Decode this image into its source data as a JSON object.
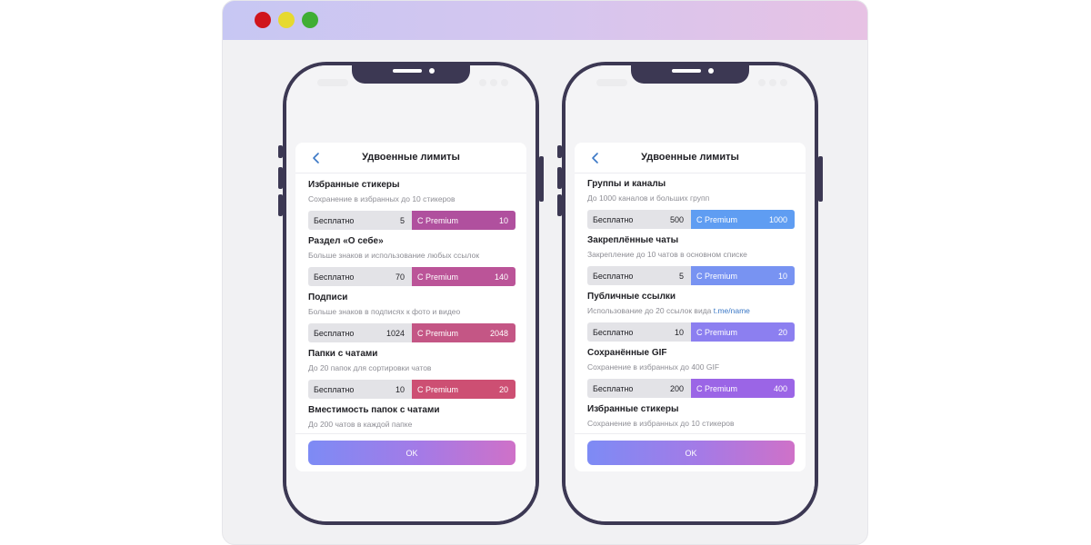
{
  "left_screen": {
    "header": {
      "title": "Удвоенные лимиты"
    },
    "items": [
      {
        "title": "Избранные стикеры",
        "subtitle": "Сохранение в избранных до 10 стикеров",
        "free_label": "Бесплатно",
        "free_value": "5",
        "premium_label": "С Premium",
        "premium_value": "10",
        "premium_color": "#b0509e"
      },
      {
        "title": "Раздел «О себе»",
        "subtitle": "Больше знаков и использование любых ссылок",
        "free_label": "Бесплатно",
        "free_value": "70",
        "premium_label": "С Premium",
        "premium_value": "140",
        "premium_color": "#bb5498"
      },
      {
        "title": "Подписи",
        "subtitle": "Больше знаков в подписях к фото и видео",
        "free_label": "Бесплатно",
        "free_value": "1024",
        "premium_label": "С Premium",
        "premium_value": "2048",
        "premium_color": "#c45685"
      },
      {
        "title": "Папки с чатами",
        "subtitle": "До 20 папок для сортировки чатов",
        "free_label": "Бесплатно",
        "free_value": "10",
        "premium_label": "С Premium",
        "premium_value": "20",
        "premium_color": "#cd4f73"
      },
      {
        "title": "Вместимость папок с чатами",
        "subtitle": "До 200 чатов в каждой папке"
      }
    ],
    "footer": {
      "ok_label": "OK"
    }
  },
  "right_screen": {
    "header": {
      "title": "Удвоенные лимиты"
    },
    "items": [
      {
        "title": "Группы и каналы",
        "subtitle": "До 1000 каналов и больших групп",
        "free_label": "Бесплатно",
        "free_value": "500",
        "premium_label": "С Premium",
        "premium_value": "1000",
        "premium_color": "#5f9df2"
      },
      {
        "title": "Закреплённые чаты",
        "subtitle": "Закрепление до 10 чатов в основном списке",
        "free_label": "Бесплатно",
        "free_value": "5",
        "premium_label": "С Premium",
        "premium_value": "10",
        "premium_color": "#7893f2"
      },
      {
        "title": "Публичные ссылки",
        "subtitle": "Использование до 20 ссылок вида ",
        "subtitle_link": "t.me/name",
        "free_label": "Бесплатно",
        "free_value": "10",
        "premium_label": "С Premium",
        "premium_value": "20",
        "premium_color": "#8c7ff0"
      },
      {
        "title": "Сохранённые GIF",
        "subtitle": "Сохранение в избранных до 400 GIF",
        "free_label": "Бесплатно",
        "free_value": "200",
        "premium_label": "С Premium",
        "premium_value": "400",
        "premium_color": "#9b65e6"
      },
      {
        "title": "Избранные стикеры",
        "subtitle": "Сохранение в избранных до 10 стикеров"
      }
    ],
    "footer": {
      "ok_label": "OK"
    }
  }
}
